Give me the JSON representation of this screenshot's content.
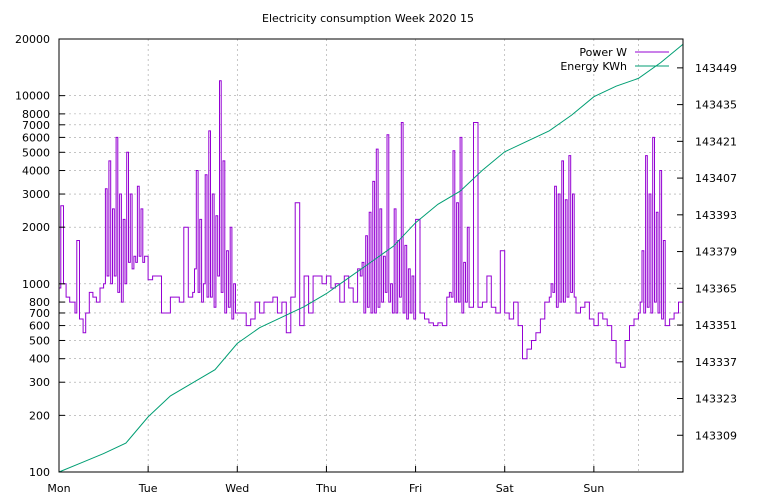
{
  "chart_data": {
    "type": "line",
    "title": "Electricity consumption Week 2020 15",
    "xlabel": "",
    "ylabel": "",
    "y_scale": "log",
    "ylim": [
      100,
      20000
    ],
    "y2lim": [
      143295,
      143460
    ],
    "x_categories": [
      "Mon",
      "Tue",
      "Wed",
      "Thu",
      "Fri",
      "Sat",
      "Sun"
    ],
    "y_ticks": [
      100,
      200,
      300,
      400,
      500,
      600,
      700,
      800,
      1000,
      2000,
      3000,
      4000,
      5000,
      6000,
      7000,
      8000,
      10000,
      20000
    ],
    "y_tick_labels": [
      "100",
      "200",
      "300",
      "400",
      "500",
      "600",
      "700",
      "800",
      "1000",
      "2000",
      "3000",
      "4000",
      "5000",
      "6000",
      "7000",
      "8000",
      "10000",
      "20000"
    ],
    "y2_ticks": [
      143309,
      143323,
      143337,
      143351,
      143365,
      143379,
      143393,
      143407,
      143421,
      143435,
      143449
    ],
    "y2_tick_labels": [
      "143309",
      "143323",
      "143337",
      "143351",
      "143365",
      "143379",
      "143393",
      "143407",
      "143421",
      "143435",
      "143449"
    ],
    "grid": true,
    "legend_position": "top-right",
    "series": [
      {
        "name": "Power W",
        "axis": "left",
        "color": "#9400d3",
        "x": [
          0.0,
          0.02,
          0.05,
          0.08,
          0.12,
          0.15,
          0.18,
          0.2,
          0.23,
          0.27,
          0.3,
          0.34,
          0.38,
          0.42,
          0.46,
          0.5,
          0.52,
          0.54,
          0.56,
          0.58,
          0.6,
          0.62,
          0.64,
          0.66,
          0.68,
          0.7,
          0.72,
          0.74,
          0.76,
          0.78,
          0.8,
          0.82,
          0.84,
          0.86,
          0.88,
          0.9,
          0.92,
          0.94,
          0.96,
          1.0,
          1.05,
          1.1,
          1.15,
          1.2,
          1.25,
          1.3,
          1.35,
          1.4,
          1.45,
          1.5,
          1.52,
          1.54,
          1.56,
          1.58,
          1.6,
          1.62,
          1.64,
          1.66,
          1.68,
          1.7,
          1.72,
          1.74,
          1.76,
          1.78,
          1.8,
          1.82,
          1.84,
          1.86,
          1.88,
          1.9,
          1.92,
          1.94,
          1.96,
          1.98,
          2.0,
          2.05,
          2.1,
          2.15,
          2.2,
          2.25,
          2.3,
          2.35,
          2.4,
          2.45,
          2.5,
          2.55,
          2.6,
          2.65,
          2.7,
          2.75,
          2.8,
          2.85,
          2.9,
          2.95,
          3.0,
          3.05,
          3.1,
          3.15,
          3.2,
          3.25,
          3.3,
          3.35,
          3.38,
          3.4,
          3.42,
          3.44,
          3.46,
          3.48,
          3.5,
          3.52,
          3.54,
          3.56,
          3.58,
          3.6,
          3.62,
          3.64,
          3.66,
          3.68,
          3.7,
          3.72,
          3.74,
          3.76,
          3.78,
          3.8,
          3.82,
          3.84,
          3.86,
          3.88,
          3.9,
          3.92,
          3.94,
          3.96,
          3.98,
          4.0,
          4.05,
          4.1,
          4.15,
          4.2,
          4.25,
          4.3,
          4.35,
          4.38,
          4.4,
          4.42,
          4.44,
          4.46,
          4.48,
          4.5,
          4.52,
          4.54,
          4.56,
          4.58,
          4.6,
          4.65,
          4.7,
          4.75,
          4.8,
          4.85,
          4.9,
          4.95,
          5.0,
          5.05,
          5.1,
          5.15,
          5.2,
          5.25,
          5.3,
          5.35,
          5.4,
          5.45,
          5.5,
          5.52,
          5.54,
          5.56,
          5.58,
          5.6,
          5.62,
          5.64,
          5.66,
          5.68,
          5.7,
          5.72,
          5.74,
          5.76,
          5.78,
          5.8,
          5.85,
          5.9,
          5.95,
          6.0,
          6.05,
          6.1,
          6.15,
          6.2,
          6.25,
          6.3,
          6.35,
          6.4,
          6.45,
          6.5,
          6.52,
          6.54,
          6.56,
          6.58,
          6.6,
          6.62,
          6.64,
          6.66,
          6.68,
          6.7,
          6.72,
          6.74,
          6.76,
          6.78,
          6.8,
          6.85,
          6.9,
          6.95,
          7.0
        ],
        "values": [
          950,
          2600,
          1000,
          850,
          800,
          800,
          700,
          1700,
          650,
          550,
          700,
          900,
          850,
          800,
          950,
          1000,
          3200,
          1100,
          4500,
          1000,
          2500,
          1100,
          6000,
          900,
          3000,
          800,
          2200,
          1000,
          5000,
          1300,
          3000,
          1200,
          1400,
          1300,
          3300,
          1400,
          2500,
          1300,
          1400,
          1050,
          1100,
          1100,
          700,
          700,
          850,
          850,
          800,
          2000,
          850,
          900,
          1200,
          4000,
          900,
          2200,
          800,
          1000,
          3800,
          850,
          6500,
          850,
          3000,
          750,
          2300,
          1100,
          12000,
          900,
          4500,
          700,
          1500,
          750,
          2000,
          650,
          1000,
          700,
          700,
          700,
          600,
          650,
          800,
          700,
          800,
          800,
          850,
          700,
          800,
          550,
          850,
          2700,
          600,
          1100,
          700,
          1100,
          1100,
          1000,
          1100,
          950,
          1000,
          800,
          1100,
          950,
          800,
          1200,
          1100,
          1300,
          700,
          1800,
          750,
          2400,
          700,
          3500,
          700,
          5200,
          750,
          2500,
          800,
          1400,
          900,
          6200,
          800,
          1000,
          700,
          2500,
          700,
          1700,
          850,
          7200,
          700,
          1600,
          650,
          1200,
          700,
          1100,
          650,
          2200,
          700,
          650,
          620,
          600,
          620,
          600,
          850,
          900,
          850,
          5100,
          800,
          2700,
          800,
          6000,
          700,
          1300,
          800,
          2000,
          750,
          7200,
          750,
          800,
          1100,
          750,
          700,
          1500,
          700,
          650,
          800,
          600,
          400,
          450,
          500,
          550,
          650,
          800,
          850,
          1000,
          900,
          3300,
          750,
          3000,
          800,
          4500,
          800,
          2800,
          850,
          4800,
          900,
          3000,
          850,
          700,
          750,
          800,
          650,
          600,
          700,
          650,
          600,
          500,
          380,
          360,
          500,
          600,
          650,
          700,
          800,
          1500,
          700,
          4800,
          750,
          3000,
          700,
          6000,
          800,
          2400,
          700,
          4000,
          650,
          1700,
          600,
          650,
          700,
          800,
          1900
        ]
      },
      {
        "name": "Energy KWh",
        "axis": "right",
        "color": "#009e73",
        "x": [
          0.0,
          0.25,
          0.5,
          0.75,
          1.0,
          1.25,
          1.5,
          1.75,
          2.0,
          2.25,
          2.5,
          2.75,
          3.0,
          3.25,
          3.5,
          3.75,
          4.0,
          4.25,
          4.5,
          4.75,
          5.0,
          5.25,
          5.5,
          5.75,
          6.0,
          6.25,
          6.5,
          6.75,
          7.0
        ],
        "values": [
          143295.0,
          143298.5,
          143302.0,
          143306.0,
          143316.0,
          143324.0,
          143329.0,
          143334.0,
          143344.0,
          143350.0,
          143354.0,
          143358.0,
          143363.0,
          143369.0,
          143375.0,
          143381.0,
          143390.0,
          143397.0,
          143402.0,
          143410.0,
          143417.0,
          143421.0,
          143425.0,
          143431.0,
          143438.0,
          143442.0,
          143445.0,
          143451.0,
          143458.0
        ]
      }
    ]
  }
}
